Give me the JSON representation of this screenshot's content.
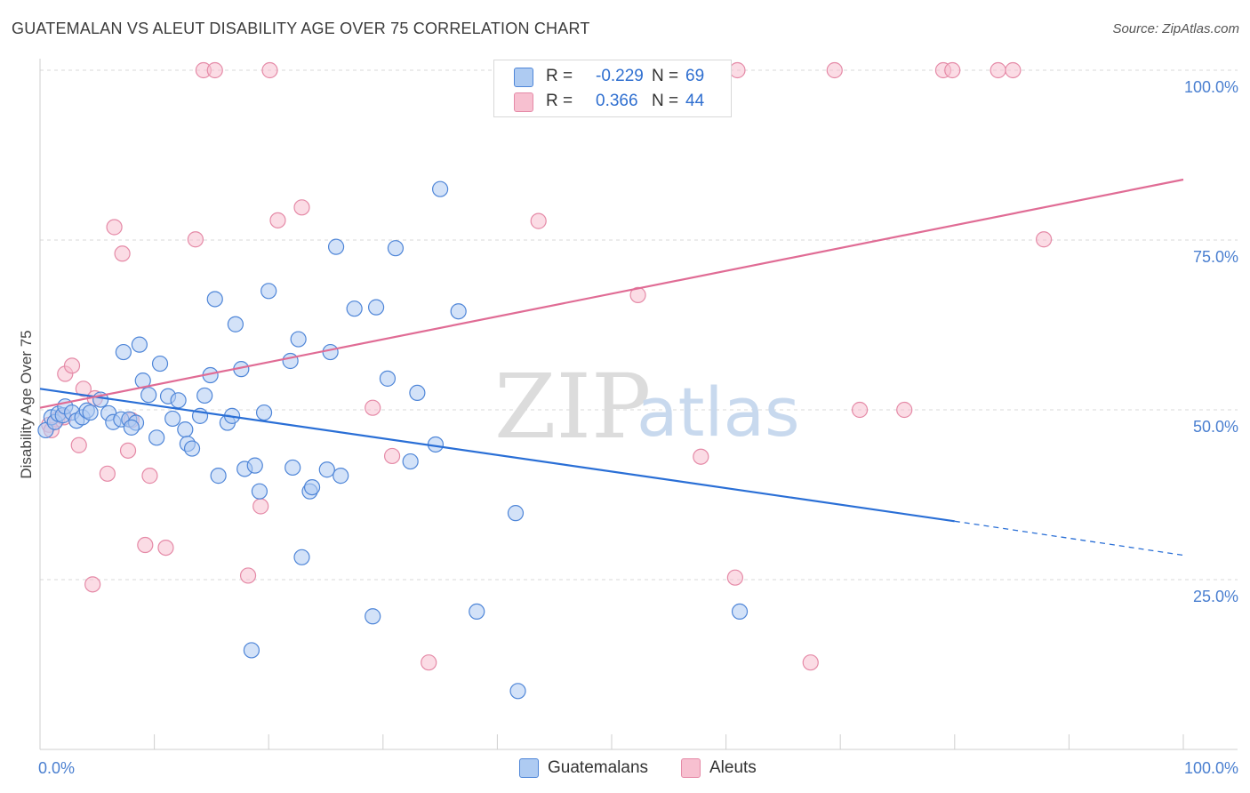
{
  "title": "GUATEMALAN VS ALEUT DISABILITY AGE OVER 75 CORRELATION CHART",
  "source": "Source: ZipAtlas.com",
  "watermark": {
    "part1": "ZIP",
    "part2": "atlas"
  },
  "colors": {
    "blue_fill": "#aecbf2",
    "blue_stroke": "#4f86d8",
    "blue_line": "#2a6fd6",
    "pink_fill": "#f7c0d0",
    "pink_stroke": "#e58aa7",
    "pink_line": "#e06c95",
    "tick_text": "#4a7fd0",
    "grid": "#d8d8d8"
  },
  "legend": {
    "rows": [
      {
        "r_label": "R =",
        "r_value": "-0.229",
        "n_label": "N =",
        "n_value": "69"
      },
      {
        "r_label": "R =",
        "r_value": "0.366",
        "n_label": "N =",
        "n_value": "44"
      }
    ]
  },
  "bottom_legend": [
    "Guatemalans",
    "Aleuts"
  ],
  "chart_data": {
    "type": "scatter",
    "title": "GUATEMALAN VS ALEUT DISABILITY AGE OVER 75 CORRELATION CHART",
    "xlabel": "",
    "ylabel": "Disability Age Over 75",
    "xlim": [
      0,
      100
    ],
    "ylim": [
      0,
      100
    ],
    "x_tick_labels": [
      "0.0%",
      "100.0%"
    ],
    "y_ticks": [
      25,
      50,
      75,
      100
    ],
    "y_tick_labels": [
      "25.0%",
      "50.0%",
      "75.0%",
      "100.0%"
    ],
    "grid": "horizontal dashed",
    "legend_position": "top-center",
    "series": [
      {
        "name": "Guatemalans",
        "r": -0.229,
        "n": 69,
        "trend": {
          "x0": 0,
          "y0": 53.1,
          "x1": 80,
          "y1": 33.6,
          "dashed_to_x": 100,
          "dashed_to_y": 28.6
        },
        "points": [
          [
            0.5,
            47.0
          ],
          [
            1.0,
            48.9
          ],
          [
            1.3,
            48.2
          ],
          [
            1.6,
            49.4
          ],
          [
            2.0,
            49.2
          ],
          [
            2.2,
            50.5
          ],
          [
            2.8,
            49.6
          ],
          [
            3.2,
            48.4
          ],
          [
            3.7,
            48.9
          ],
          [
            4.1,
            49.9
          ],
          [
            4.4,
            49.6
          ],
          [
            5.3,
            51.5
          ],
          [
            6.0,
            49.5
          ],
          [
            6.4,
            48.2
          ],
          [
            7.1,
            48.6
          ],
          [
            7.3,
            58.5
          ],
          [
            7.8,
            48.6
          ],
          [
            8.4,
            48.1
          ],
          [
            8.7,
            59.6
          ],
          [
            9.0,
            54.3
          ],
          [
            9.5,
            52.2
          ],
          [
            10.2,
            45.9
          ],
          [
            10.5,
            56.8
          ],
          [
            11.2,
            52.0
          ],
          [
            11.6,
            48.7
          ],
          [
            12.1,
            51.4
          ],
          [
            12.7,
            47.1
          ],
          [
            12.9,
            45.0
          ],
          [
            13.3,
            44.3
          ],
          [
            14.0,
            49.1
          ],
          [
            14.4,
            52.1
          ],
          [
            14.9,
            55.1
          ],
          [
            15.3,
            66.3
          ],
          [
            15.6,
            40.3
          ],
          [
            16.4,
            48.1
          ],
          [
            16.8,
            49.1
          ],
          [
            17.1,
            62.6
          ],
          [
            17.6,
            56.0
          ],
          [
            17.9,
            41.3
          ],
          [
            18.8,
            41.8
          ],
          [
            19.2,
            38.0
          ],
          [
            19.6,
            49.6
          ],
          [
            20.0,
            67.5
          ],
          [
            21.9,
            57.2
          ],
          [
            22.1,
            41.5
          ],
          [
            22.6,
            60.4
          ],
          [
            22.9,
            28.3
          ],
          [
            23.6,
            38.0
          ],
          [
            23.8,
            38.6
          ],
          [
            25.1,
            41.2
          ],
          [
            25.4,
            58.5
          ],
          [
            25.9,
            74.0
          ],
          [
            26.3,
            40.3
          ],
          [
            27.5,
            64.9
          ],
          [
            29.1,
            19.6
          ],
          [
            29.4,
            65.1
          ],
          [
            30.4,
            54.6
          ],
          [
            31.1,
            73.8
          ],
          [
            32.4,
            42.4
          ],
          [
            33.0,
            52.5
          ],
          [
            34.6,
            44.9
          ],
          [
            35.0,
            82.5
          ],
          [
            36.6,
            64.5
          ],
          [
            38.2,
            20.3
          ],
          [
            41.6,
            34.8
          ],
          [
            41.8,
            8.6
          ],
          [
            61.2,
            20.3
          ],
          [
            18.5,
            14.6
          ],
          [
            8.0,
            47.4
          ]
        ]
      },
      {
        "name": "Aleuts",
        "r": 0.366,
        "n": 44,
        "trend": {
          "x0": 0,
          "y0": 50.3,
          "x1": 100,
          "y1": 83.9
        },
        "points": [
          [
            0.8,
            47.8
          ],
          [
            1.5,
            48.6
          ],
          [
            2.1,
            48.9
          ],
          [
            2.2,
            55.3
          ],
          [
            2.8,
            56.5
          ],
          [
            3.4,
            44.8
          ],
          [
            3.8,
            53.1
          ],
          [
            4.6,
            24.3
          ],
          [
            4.8,
            51.7
          ],
          [
            5.9,
            40.6
          ],
          [
            6.5,
            76.9
          ],
          [
            7.2,
            73.0
          ],
          [
            7.7,
            44.0
          ],
          [
            8.0,
            48.5
          ],
          [
            9.2,
            30.1
          ],
          [
            9.6,
            40.3
          ],
          [
            11.0,
            29.7
          ],
          [
            13.6,
            75.1
          ],
          [
            14.3,
            100.0
          ],
          [
            15.3,
            100.0
          ],
          [
            18.2,
            25.6
          ],
          [
            19.3,
            35.8
          ],
          [
            20.1,
            100.0
          ],
          [
            20.8,
            77.9
          ],
          [
            22.9,
            79.8
          ],
          [
            29.1,
            50.3
          ],
          [
            30.8,
            43.2
          ],
          [
            34.0,
            12.8
          ],
          [
            43.6,
            77.8
          ],
          [
            47.1,
            100.0
          ],
          [
            52.3,
            66.9
          ],
          [
            57.8,
            43.1
          ],
          [
            60.8,
            25.3
          ],
          [
            61.0,
            100.0
          ],
          [
            67.4,
            12.8
          ],
          [
            69.5,
            100.0
          ],
          [
            71.7,
            50.0
          ],
          [
            75.6,
            50.0
          ],
          [
            79.0,
            100.0
          ],
          [
            79.8,
            100.0
          ],
          [
            83.8,
            100.0
          ],
          [
            85.1,
            100.0
          ],
          [
            87.8,
            75.1
          ],
          [
            1.0,
            47.0
          ]
        ]
      }
    ]
  }
}
